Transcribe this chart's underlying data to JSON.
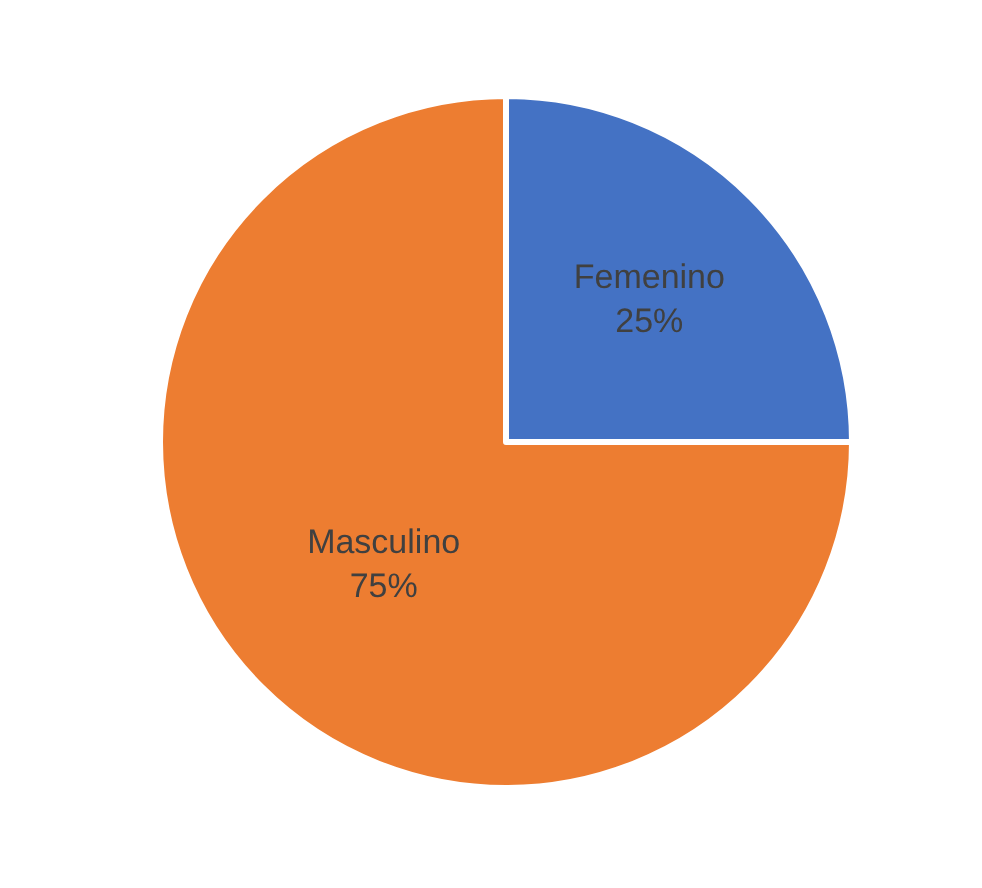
{
  "chart_data": {
    "type": "pie",
    "categories": [
      "Femenino",
      "Masculino"
    ],
    "values": [
      25,
      75
    ],
    "colors": [
      "#4472c4",
      "#ed7d31"
    ],
    "value_labels": [
      "25%",
      "75%"
    ],
    "legend": false
  }
}
